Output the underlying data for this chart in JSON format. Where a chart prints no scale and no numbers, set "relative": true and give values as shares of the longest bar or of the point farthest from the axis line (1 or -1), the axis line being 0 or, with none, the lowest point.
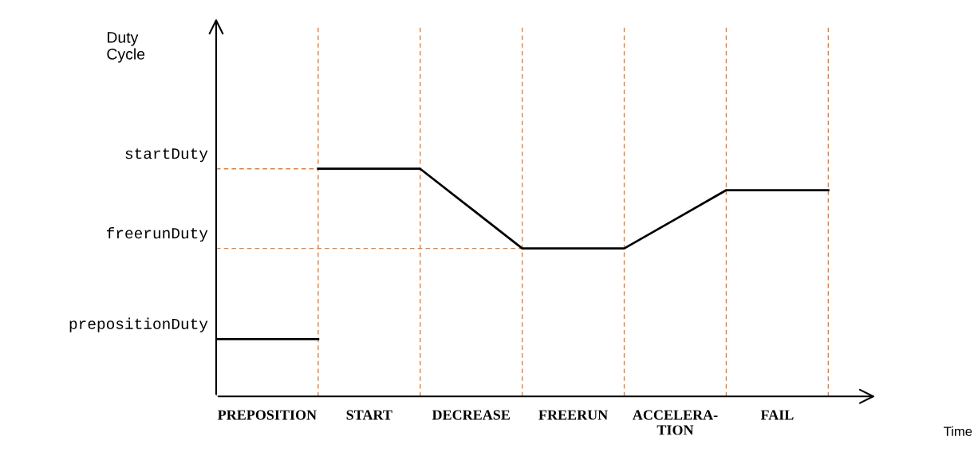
{
  "chart_data": {
    "type": "line",
    "relative": true,
    "categories": [
      null,
      "PREPOSITION",
      null,
      "START",
      null,
      "DECREASE",
      null,
      "FREERUN",
      null,
      "ACCELERA-\nTION",
      null,
      "FAIL",
      null
    ],
    "series": [
      {
        "color": "#000000",
        "values": [
          0.252,
          0.252,
          0.252,
          null,
          null,
          null,
          null,
          null,
          null,
          null,
          null,
          null,
          null
        ]
      },
      {
        "color": "#000000",
        "values": [
          null,
          null,
          1,
          1,
          1,
          0.825,
          0.65,
          0.65,
          0.65,
          0.778,
          0.906,
          0.906,
          0.906
        ]
      }
    ],
    "ref_lines": [
      {
        "axis": "y",
        "value": 1,
        "label": "startDuty",
        "color": "#ed7d31",
        "line_style": "dashed"
      },
      {
        "axis": "y",
        "value": 0.65,
        "label": "freerunDuty",
        "color": "#ed7d31",
        "line_style": "dashed"
      }
    ],
    "annotations": [
      "prepositionDuty",
      "Duty\nCycle",
      "Time"
    ],
    "grid": "x",
    "marker": "none",
    "line_style": "solid"
  }
}
